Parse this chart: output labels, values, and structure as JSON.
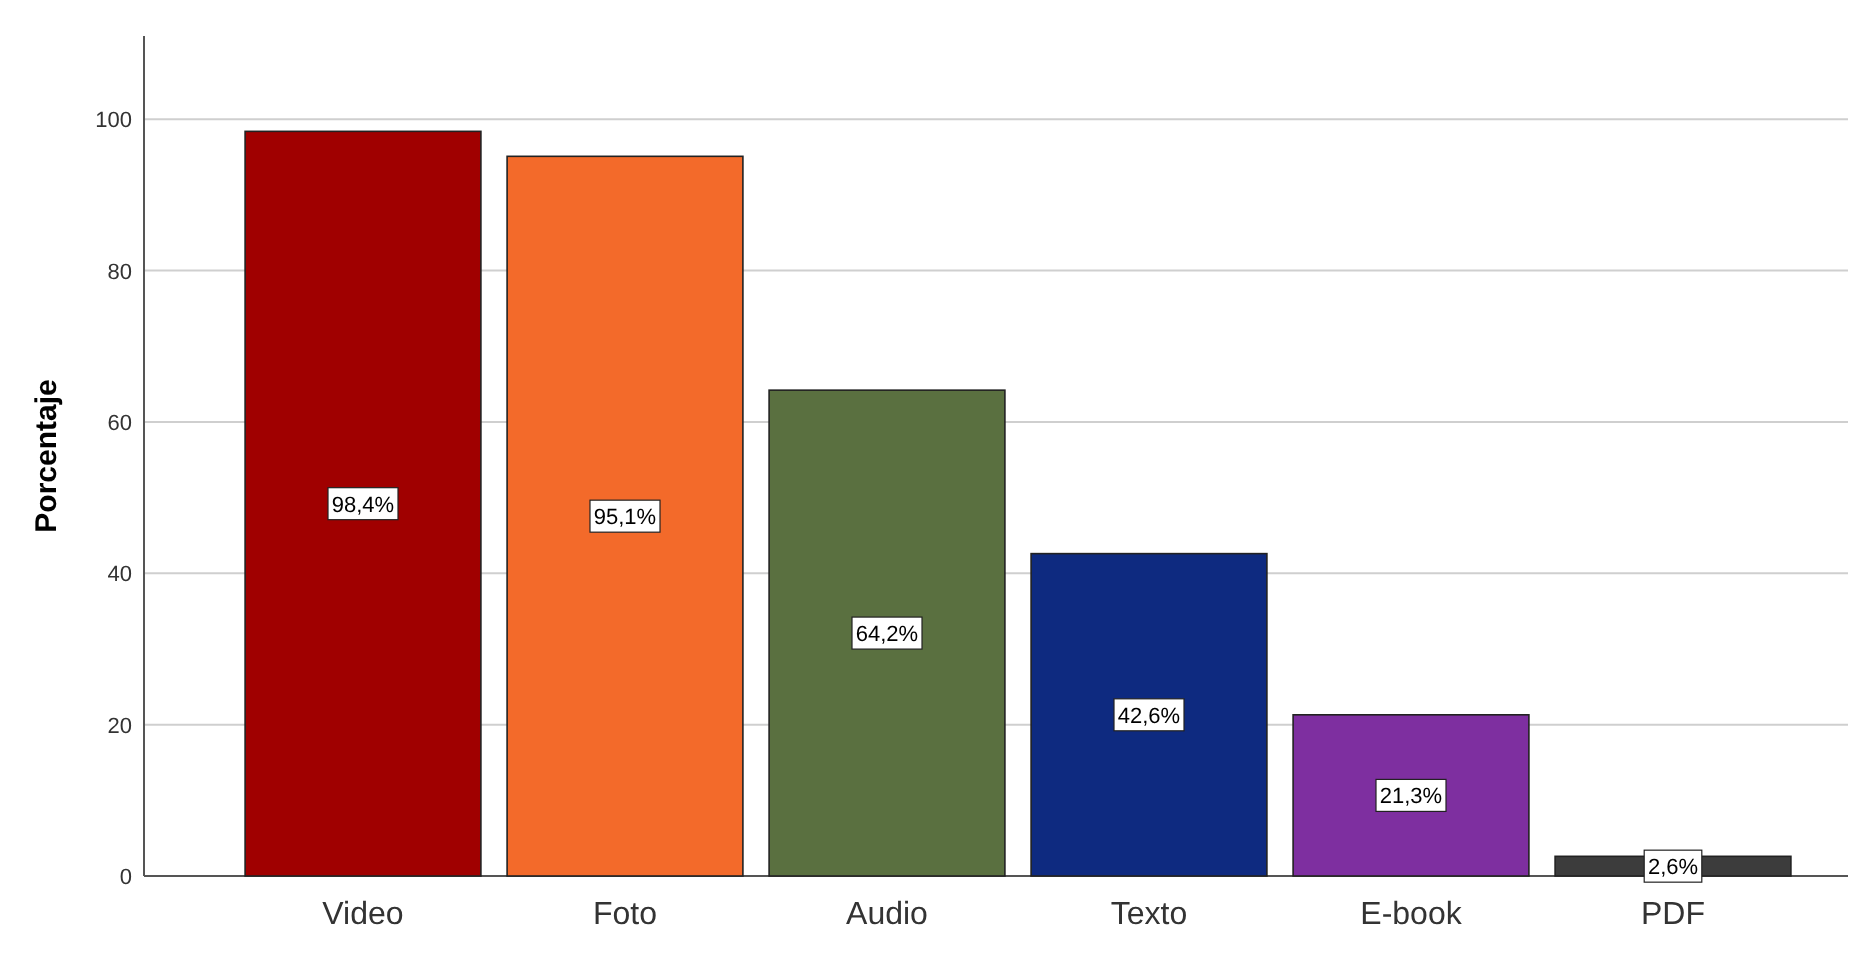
{
  "chart_data": {
    "type": "bar",
    "ylabel": "Porcentaje",
    "categories": [
      "Video",
      "Foto",
      "Audio",
      "Texto",
      "E-book",
      "PDF"
    ],
    "values": [
      98.4,
      95.1,
      64.2,
      42.6,
      21.3,
      2.6
    ],
    "colors": [
      "#a00000",
      "#f36a2a",
      "#5a7040",
      "#0e2a80",
      "#7e2fa0",
      "#3c3c3c"
    ],
    "value_labels": [
      "98,4%",
      "95,1%",
      "64,2%",
      "42,6%",
      "21,3%",
      "2,6%"
    ],
    "ylim": [
      0,
      111
    ],
    "yticks": [
      0,
      20,
      40,
      60,
      80,
      100
    ],
    "grid": "y"
  }
}
